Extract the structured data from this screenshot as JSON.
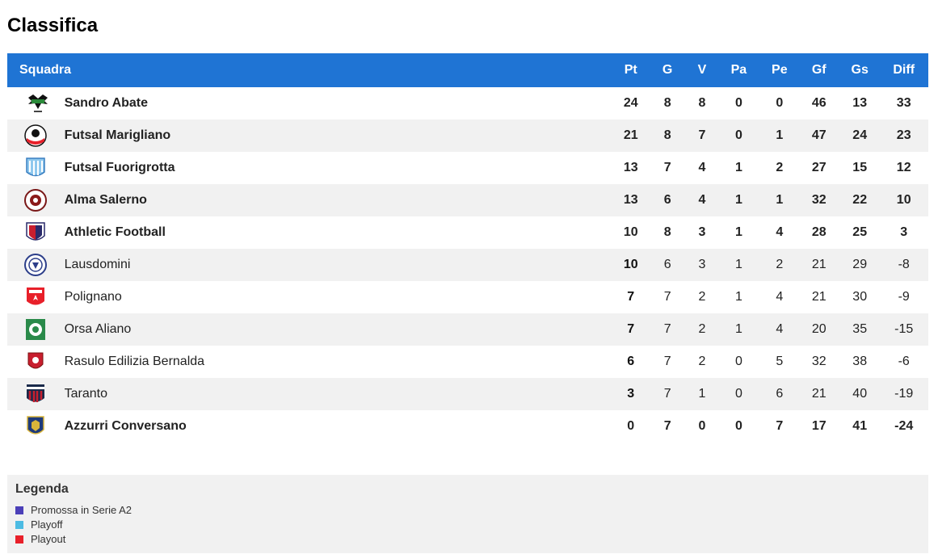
{
  "page": {
    "title": "Classifica"
  },
  "table": {
    "headers": {
      "team": "Squadra",
      "pt": "Pt",
      "g": "G",
      "v": "V",
      "pa": "Pa",
      "pe": "Pe",
      "gf": "Gf",
      "gs": "Gs",
      "diff": "Diff"
    },
    "rows": [
      {
        "team": "Sandro Abate",
        "pt": "24",
        "g": "8",
        "v": "8",
        "pa": "0",
        "pe": "0",
        "gf": "46",
        "gs": "13",
        "diff": "33",
        "status": "promo",
        "crest": "sandro-abate-crest-icon"
      },
      {
        "team": "Futsal Marigliano",
        "pt": "21",
        "g": "8",
        "v": "7",
        "pa": "0",
        "pe": "1",
        "gf": "47",
        "gs": "24",
        "diff": "23",
        "status": "playoff",
        "crest": "futsal-marigliano-crest-icon"
      },
      {
        "team": "Futsal Fuorigrotta",
        "pt": "13",
        "g": "7",
        "v": "4",
        "pa": "1",
        "pe": "2",
        "gf": "27",
        "gs": "15",
        "diff": "12",
        "status": "playoff",
        "crest": "futsal-fuorigrotta-crest-icon"
      },
      {
        "team": "Alma Salerno",
        "pt": "13",
        "g": "6",
        "v": "4",
        "pa": "1",
        "pe": "1",
        "gf": "32",
        "gs": "22",
        "diff": "10",
        "status": "playoff",
        "crest": "alma-salerno-crest-icon"
      },
      {
        "team": "Athletic Football",
        "pt": "10",
        "g": "8",
        "v": "3",
        "pa": "1",
        "pe": "4",
        "gf": "28",
        "gs": "25",
        "diff": "3",
        "status": "playoff",
        "crest": "athletic-football-crest-icon"
      },
      {
        "team": "Lausdomini",
        "pt": "10",
        "g": "6",
        "v": "3",
        "pa": "1",
        "pe": "2",
        "gf": "21",
        "gs": "29",
        "diff": "-8",
        "status": "none",
        "crest": "lausdomini-crest-icon"
      },
      {
        "team": "Polignano",
        "pt": "7",
        "g": "7",
        "v": "2",
        "pa": "1",
        "pe": "4",
        "gf": "21",
        "gs": "30",
        "diff": "-9",
        "status": "none",
        "crest": "polignano-crest-icon"
      },
      {
        "team": "Orsa Aliano",
        "pt": "7",
        "g": "7",
        "v": "2",
        "pa": "1",
        "pe": "4",
        "gf": "20",
        "gs": "35",
        "diff": "-15",
        "status": "none",
        "crest": "orsa-aliano-crest-icon"
      },
      {
        "team": "Rasulo Edilizia Bernalda",
        "pt": "6",
        "g": "7",
        "v": "2",
        "pa": "0",
        "pe": "5",
        "gf": "32",
        "gs": "38",
        "diff": "-6",
        "status": "none",
        "crest": "rasulo-edilizia-bernalda-crest-icon"
      },
      {
        "team": "Taranto",
        "pt": "3",
        "g": "7",
        "v": "1",
        "pa": "0",
        "pe": "6",
        "gf": "21",
        "gs": "40",
        "diff": "-19",
        "status": "none",
        "crest": "taranto-crest-icon"
      },
      {
        "team": "Azzurri Conversano",
        "pt": "0",
        "g": "7",
        "v": "0",
        "pa": "0",
        "pe": "7",
        "gf": "17",
        "gs": "41",
        "diff": "-24",
        "status": "playout",
        "crest": "azzurri-conversano-crest-icon"
      }
    ]
  },
  "legend": {
    "title": "Legenda",
    "items": [
      {
        "label": "Promossa in Serie A2",
        "color": "#4b3fb8"
      },
      {
        "label": "Playoff",
        "color": "#4cbbe3"
      },
      {
        "label": "Playout",
        "color": "#e8202a"
      }
    ]
  },
  "colors": {
    "header_bg": "#1f74d4",
    "row_alt_bg": "#f1f1f1",
    "promo": "#4b3fb8",
    "playoff": "#4cbbe3",
    "playout": "#e8202a"
  }
}
